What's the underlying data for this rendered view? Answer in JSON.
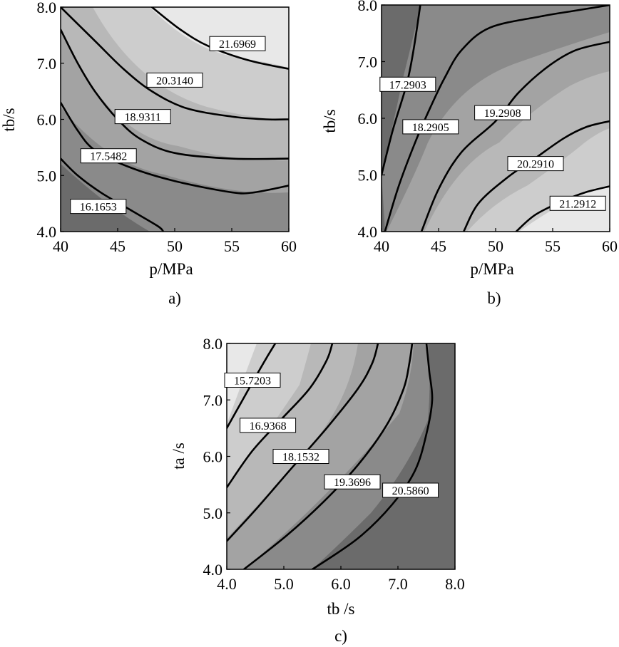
{
  "chart_data": [
    {
      "type": "contour",
      "caption": "a)",
      "xlabel": "p/MPa",
      "ylabel": "tb/s",
      "xlim": [
        40,
        60
      ],
      "ylim": [
        4.0,
        8.0
      ],
      "xticks": [
        "40",
        "45",
        "50",
        "55",
        "60"
      ],
      "yticks": [
        "4.0",
        "5.0",
        "6.0",
        "7.0",
        "8.0"
      ],
      "levels": [
        {
          "label": "16.1653",
          "value": 16.1653
        },
        {
          "label": "17.5482",
          "value": 17.5482
        },
        {
          "label": "18.9311",
          "value": 18.9311
        },
        {
          "label": "20.3140",
          "value": 20.314
        },
        {
          "label": "21.6969",
          "value": 21.6969
        }
      ],
      "contours": [
        [
          [
            40,
            5.3
          ],
          [
            41.5,
            5.0
          ],
          [
            43.5,
            4.7
          ],
          [
            46,
            4.4
          ],
          [
            48.5,
            4.1
          ],
          [
            49,
            4.0
          ]
        ],
        [
          [
            40,
            6.3
          ],
          [
            41.5,
            5.8
          ],
          [
            43,
            5.45
          ],
          [
            46,
            5.15
          ],
          [
            50,
            4.9
          ],
          [
            55,
            4.7
          ],
          [
            57,
            4.7
          ],
          [
            60,
            4.82
          ]
        ],
        [
          [
            40,
            7.6
          ],
          [
            41.5,
            7.0
          ],
          [
            43,
            6.5
          ],
          [
            45,
            6.0
          ],
          [
            47,
            5.65
          ],
          [
            50,
            5.4
          ],
          [
            55,
            5.3
          ],
          [
            60,
            5.3
          ]
        ],
        [
          [
            40,
            8.0
          ],
          [
            43,
            7.4
          ],
          [
            45.5,
            6.9
          ],
          [
            48,
            6.5
          ],
          [
            51,
            6.2
          ],
          [
            55,
            6.05
          ],
          [
            58,
            6.0
          ],
          [
            60,
            6.0
          ]
        ],
        [
          [
            48,
            8.0
          ],
          [
            50.5,
            7.6
          ],
          [
            53,
            7.3
          ],
          [
            56.5,
            7.05
          ],
          [
            60,
            6.9
          ]
        ]
      ],
      "label_positions": [
        [
          43.3,
          4.45
        ],
        [
          44.2,
          5.35
        ],
        [
          47.2,
          6.05
        ],
        [
          50,
          6.7
        ],
        [
          55.5,
          7.35
        ]
      ]
    },
    {
      "type": "contour",
      "caption": "b)",
      "xlabel": "p/MPa",
      "ylabel": "tb/s",
      "xlim": [
        40,
        60
      ],
      "ylim": [
        4.0,
        8.0
      ],
      "xticks": [
        "40",
        "45",
        "50",
        "55",
        "60"
      ],
      "yticks": [
        "4.0",
        "5.0",
        "6.0",
        "7.0",
        "8.0"
      ],
      "levels": [
        {
          "label": "17.2903",
          "value": 17.2903
        },
        {
          "label": "18.2905",
          "value": 18.2905
        },
        {
          "label": "19.2908",
          "value": 19.2908
        },
        {
          "label": "20.2910",
          "value": 20.291
        },
        {
          "label": "21.2912",
          "value": 21.2912
        }
      ],
      "contours": [
        [
          [
            40,
            5.0
          ],
          [
            41,
            5.8
          ],
          [
            42.2,
            6.6
          ],
          [
            42.8,
            7.2
          ],
          [
            43.4,
            8.0
          ]
        ],
        [
          [
            40.3,
            4.0
          ],
          [
            41.5,
            4.8
          ],
          [
            43,
            5.6
          ],
          [
            44.3,
            6.2
          ],
          [
            45.5,
            6.7
          ],
          [
            47,
            7.2
          ],
          [
            49.5,
            7.6
          ],
          [
            54,
            7.8
          ],
          [
            57,
            7.9
          ],
          [
            60,
            8.0
          ]
        ],
        [
          [
            43.5,
            4.0
          ],
          [
            45,
            4.75
          ],
          [
            47,
            5.4
          ],
          [
            50,
            5.95
          ],
          [
            52,
            6.45
          ],
          [
            54.5,
            6.9
          ],
          [
            57,
            7.2
          ],
          [
            60,
            7.35
          ]
        ],
        [
          [
            47.2,
            4.0
          ],
          [
            48.5,
            4.5
          ],
          [
            51,
            4.95
          ],
          [
            53.5,
            5.3
          ],
          [
            56,
            5.65
          ],
          [
            58,
            5.85
          ],
          [
            60,
            5.95
          ]
        ],
        [
          [
            51.8,
            4.0
          ],
          [
            53.5,
            4.3
          ],
          [
            56,
            4.55
          ],
          [
            58,
            4.7
          ],
          [
            60,
            4.8
          ]
        ]
      ],
      "label_positions": [
        [
          42.3,
          6.6
        ],
        [
          44.3,
          5.85
        ],
        [
          50.6,
          6.1
        ],
        [
          53.5,
          5.2
        ],
        [
          57.2,
          4.5
        ]
      ]
    },
    {
      "type": "contour",
      "caption": "c)",
      "xlabel": "tb /s",
      "ylabel": "ta /s",
      "xlim": [
        4.0,
        8.0
      ],
      "ylim": [
        4.0,
        8.0
      ],
      "xticks": [
        "4.0",
        "5.0",
        "6.0",
        "7.0",
        "8.0"
      ],
      "yticks": [
        "4.0",
        "5.0",
        "6.0",
        "7.0",
        "8.0"
      ],
      "levels": [
        {
          "label": "15.7203",
          "value": 15.7203
        },
        {
          "label": "16.9368",
          "value": 16.9368
        },
        {
          "label": "18.1532",
          "value": 18.1532
        },
        {
          "label": "19.3696",
          "value": 19.3696
        },
        {
          "label": "20.5860",
          "value": 20.586
        }
      ],
      "contours": [
        [
          [
            4.0,
            6.5
          ],
          [
            4.25,
            6.95
          ],
          [
            4.5,
            7.4
          ],
          [
            4.7,
            7.75
          ],
          [
            4.85,
            8.0
          ]
        ],
        [
          [
            4.0,
            5.45
          ],
          [
            4.45,
            6.1
          ],
          [
            4.95,
            6.65
          ],
          [
            5.45,
            7.2
          ],
          [
            5.75,
            7.7
          ],
          [
            5.85,
            8.0
          ]
        ],
        [
          [
            4.0,
            4.5
          ],
          [
            4.5,
            5.05
          ],
          [
            5.1,
            5.75
          ],
          [
            5.75,
            6.5
          ],
          [
            6.3,
            7.2
          ],
          [
            6.55,
            7.65
          ],
          [
            6.65,
            8.0
          ]
        ],
        [
          [
            4.3,
            4.0
          ],
          [
            5.05,
            4.6
          ],
          [
            5.7,
            5.2
          ],
          [
            6.3,
            5.85
          ],
          [
            6.8,
            6.55
          ],
          [
            7.1,
            7.2
          ],
          [
            7.2,
            7.65
          ],
          [
            7.25,
            8.0
          ]
        ],
        [
          [
            5.5,
            4.0
          ],
          [
            6.3,
            4.55
          ],
          [
            6.9,
            5.15
          ],
          [
            7.3,
            5.75
          ],
          [
            7.5,
            6.4
          ],
          [
            7.6,
            7.0
          ],
          [
            7.55,
            7.5
          ],
          [
            7.5,
            8.0
          ]
        ]
      ],
      "label_positions": [
        [
          4.45,
          7.35
        ],
        [
          4.72,
          6.55
        ],
        [
          5.3,
          6.0
        ],
        [
          6.2,
          5.55
        ],
        [
          7.22,
          5.4
        ]
      ]
    }
  ]
}
